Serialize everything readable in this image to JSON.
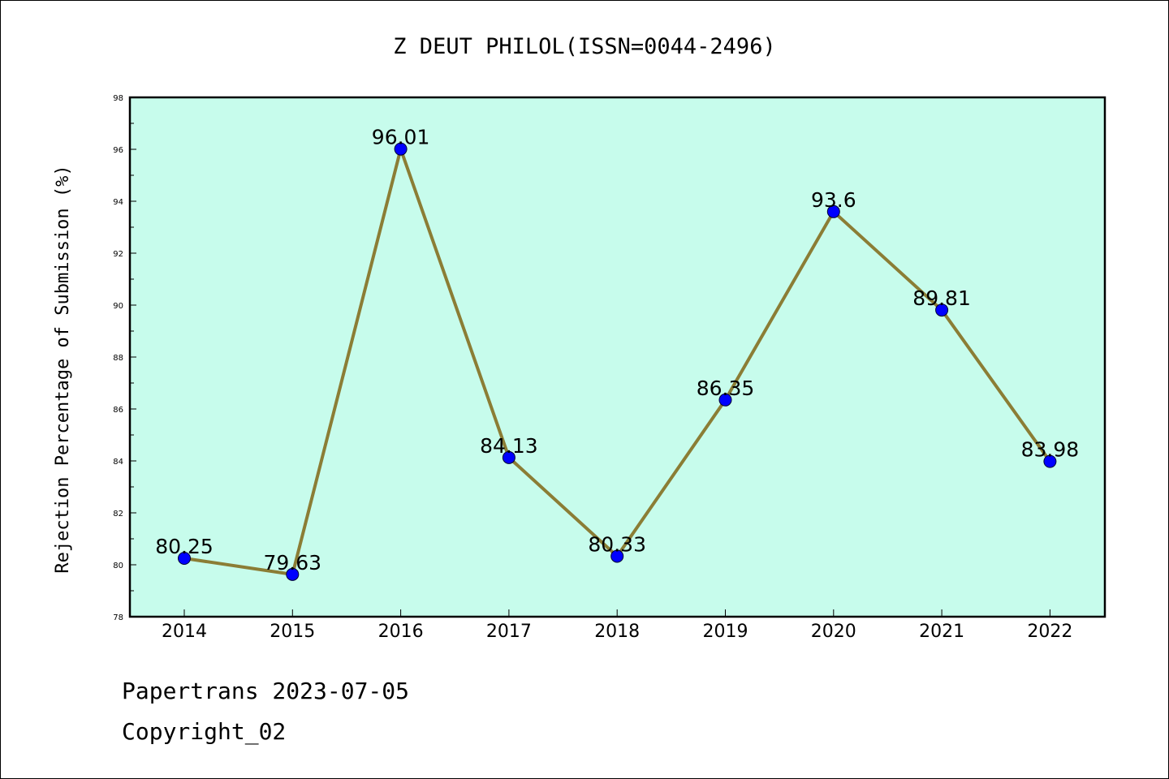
{
  "chart_data": {
    "type": "line",
    "title": "Z DEUT PHILOL(ISSN=0044-2496)",
    "xlabel": "",
    "ylabel": "Rejection Percentage of Submission (%)",
    "categories": [
      "2014",
      "2015",
      "2016",
      "2017",
      "2018",
      "2019",
      "2020",
      "2021",
      "2022"
    ],
    "values": [
      80.25,
      79.63,
      96.01,
      84.13,
      80.33,
      86.35,
      93.6,
      89.81,
      83.98
    ],
    "data_labels": [
      "80.25",
      "79.63",
      "96.01",
      "84.13",
      "80.33",
      "86.35",
      "93.6",
      "89.81",
      "83.98"
    ],
    "ylim": [
      78,
      98
    ],
    "yticks": [
      78,
      80,
      82,
      84,
      86,
      88,
      90,
      92,
      94,
      96,
      98
    ],
    "grid": false,
    "colors": {
      "plot_bg": "#c7fcec",
      "line": "#8b7d35",
      "marker": "#0000ff",
      "axis": "#000000"
    }
  },
  "footer": {
    "line1": "Papertrans 2023-07-05",
    "line2": "Copyright_02"
  }
}
